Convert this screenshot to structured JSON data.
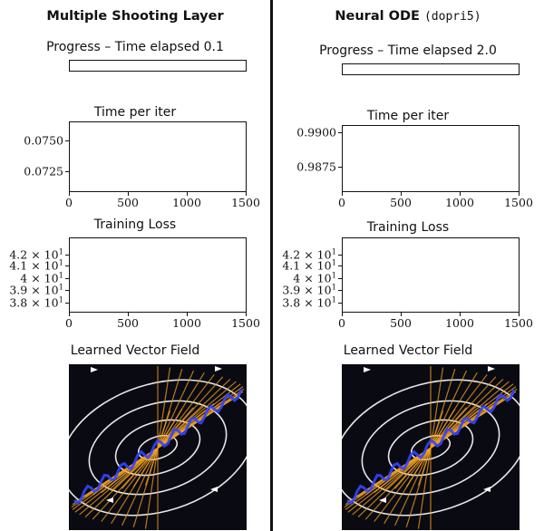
{
  "panels": [
    {
      "id": "left",
      "title": "Multiple Shooting Layer",
      "title_suffix": "",
      "progress": {
        "label": "Progress – Time elapsed 0.1",
        "fraction": 0.0
      },
      "vector_field_title": "Learned Vector Field"
    },
    {
      "id": "right",
      "title": "Neural ODE",
      "title_suffix": "(dopri5)",
      "progress": {
        "label": "Progress – Time elapsed 2.0",
        "fraction": 0.0
      },
      "vector_field_title": "Learned Vector Field"
    }
  ],
  "chart_data": [
    {
      "panel": "left",
      "type": "line",
      "title": "Time per iter",
      "x": [],
      "y": [],
      "xlim": [
        0,
        1500
      ],
      "ylim": [
        0.0708,
        0.0765
      ],
      "xticks": [
        "0",
        "500",
        "1000",
        "1500"
      ],
      "xtick_values": [
        0,
        500,
        1000,
        1500
      ],
      "yticks": [
        "0.0750",
        "0.0725"
      ],
      "ytick_values": [
        0.075,
        0.0725
      ],
      "grid": false
    },
    {
      "panel": "left",
      "type": "line",
      "title": "Training Loss",
      "x": [],
      "y": [],
      "xlim": [
        0,
        1500
      ],
      "ylim": [
        37.2,
        43.5
      ],
      "yscale": "log",
      "xticks": [
        "0",
        "500",
        "1000",
        "1500"
      ],
      "xtick_values": [
        0,
        500,
        1000,
        1500
      ],
      "yticks": [
        {
          "mant": "4.2 × 10",
          "exp": "1"
        },
        {
          "mant": "4.1 × 10",
          "exp": "1"
        },
        {
          "mant": "4 × 10",
          "exp": "1"
        },
        {
          "mant": "3.9 × 10",
          "exp": "1"
        },
        {
          "mant": "3.8 × 10",
          "exp": "1"
        }
      ],
      "ytick_values": [
        42,
        41,
        40,
        39,
        38
      ],
      "grid": false
    },
    {
      "panel": "right",
      "type": "line",
      "title": "Time per iter",
      "x": [],
      "y": [],
      "xlim": [
        0,
        1500
      ],
      "ylim": [
        0.9857,
        0.9905
      ],
      "xticks": [
        "0",
        "500",
        "1000",
        "1500"
      ],
      "xtick_values": [
        0,
        500,
        1000,
        1500
      ],
      "yticks": [
        "0.9900",
        "0.9875"
      ],
      "ytick_values": [
        0.99,
        0.9875
      ],
      "grid": false
    },
    {
      "panel": "right",
      "type": "line",
      "title": "Training Loss",
      "x": [],
      "y": [],
      "xlim": [
        0,
        1500
      ],
      "ylim": [
        37.2,
        43.5
      ],
      "yscale": "log",
      "xticks": [
        "0",
        "500",
        "1000",
        "1500"
      ],
      "xtick_values": [
        0,
        500,
        1000,
        1500
      ],
      "yticks": [
        {
          "mant": "4.2 × 10",
          "exp": "1"
        },
        {
          "mant": "4.1 × 10",
          "exp": "1"
        },
        {
          "mant": "4 × 10",
          "exp": "1"
        },
        {
          "mant": "3.9 × 10",
          "exp": "1"
        },
        {
          "mant": "3.8 × 10",
          "exp": "1"
        }
      ],
      "ytick_values": [
        42,
        41,
        40,
        39,
        38
      ],
      "grid": false
    }
  ],
  "colors": {
    "background_dark": "#0a0a12",
    "streamline": "#ffffff",
    "trajectory_orange": "#f0a020",
    "trajectory_blue": "#3344ff"
  }
}
